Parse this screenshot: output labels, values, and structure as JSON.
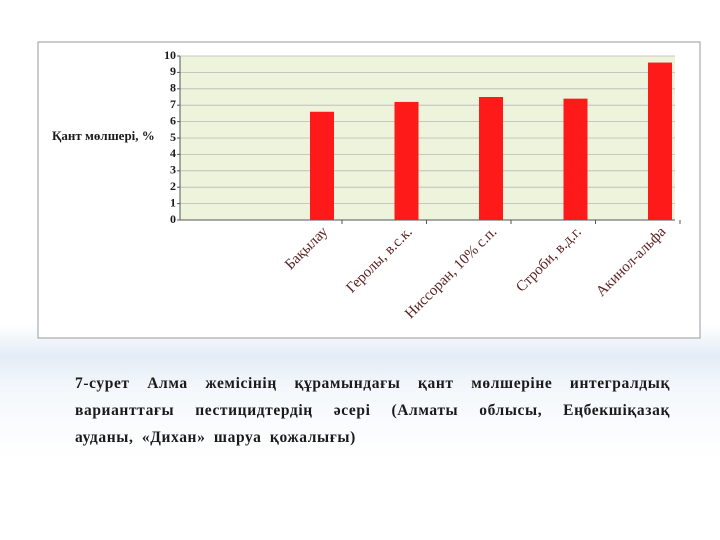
{
  "chart_data": {
    "type": "bar",
    "ylabel": "Қант мөлшері, %",
    "categories": [
      "Бақылау",
      "Геролы, в.с.к.",
      "Ниссоран, 10% с.п.",
      "Строби, в.д.г.",
      "Акинол-альфа"
    ],
    "values": [
      6.6,
      7.2,
      7.5,
      7.4,
      9.6
    ],
    "color": "#ff1a1a",
    "ylim": [
      0,
      10
    ],
    "yticks": [
      0,
      1,
      2,
      3,
      4,
      5,
      6,
      7,
      8,
      9,
      10
    ],
    "grid": true
  },
  "caption": "7-сурет Алма жемісінің құрамындағы қант мөлшеріне интегралдық варианттағы пестицидтердің әсері (Алматы облысы, Еңбекшіқазақ ауданы, «Дихан» шаруа қожалығы)"
}
